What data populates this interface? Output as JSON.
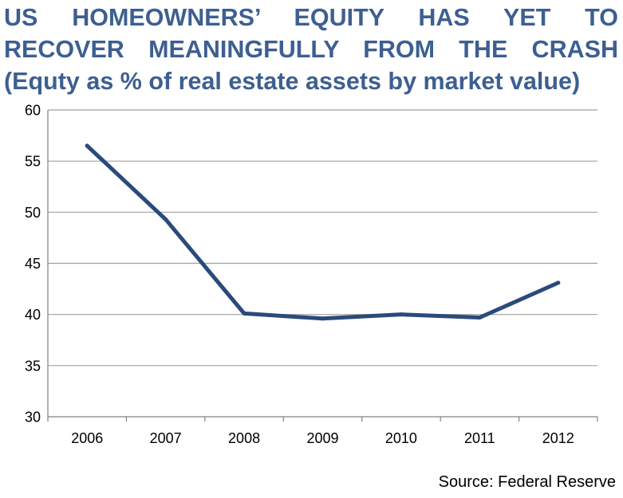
{
  "title_lines": [
    "US HOMEOWNERS’ EQUITY HAS YET TO",
    "RECOVER MEANINGFULLY FROM THE CRASH"
  ],
  "subtitle": "(Equty as % of real estate assets by market value)",
  "source": "Source: Federal Reserve",
  "colors": {
    "title": "#3d5f91",
    "line": "#2a4a7c",
    "grid": "#a0a0a0",
    "axis": "#808080"
  },
  "chart_data": {
    "type": "line",
    "title": "US HOMEOWNERS’ EQUITY HAS YET TO RECOVER MEANINGFULLY FROM THE CRASH",
    "subtitle": "(Equty as % of real estate assets by market value)",
    "categories": [
      "2006",
      "2007",
      "2008",
      "2009",
      "2010",
      "2011",
      "2012"
    ],
    "series": [
      {
        "values": [
          56.5,
          49.3,
          40.1,
          39.6,
          40.0,
          39.7,
          43.1
        ]
      }
    ],
    "y_ticks": [
      30,
      35,
      40,
      45,
      50,
      55,
      60
    ],
    "ylim": [
      30,
      60
    ],
    "xlabel": "",
    "ylabel": "",
    "grid": true,
    "legend": "none"
  }
}
